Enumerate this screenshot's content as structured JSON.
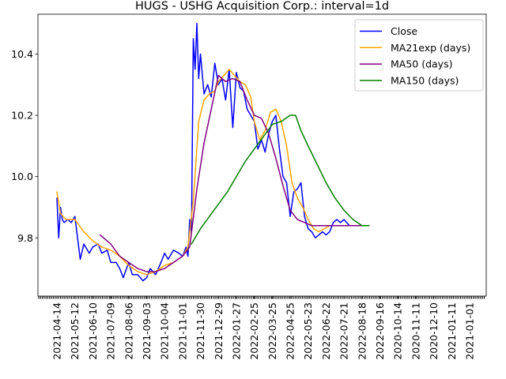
{
  "chart_data": {
    "type": "line",
    "title": "HUGS - USHG Acquisition Corp.: interval=1d",
    "xlabel": "",
    "ylabel": "",
    "ylim": [
      9.61,
      10.53
    ],
    "y_ticks": [
      9.8,
      10.0,
      10.2,
      10.4
    ],
    "y_tick_labels": [
      "9.8",
      "10.0",
      "10.2",
      "10.4"
    ],
    "x_tick_labels": [
      "2021-04-14",
      "2021-05-12",
      "2021-06-10",
      "2021-07-09",
      "2021-08-06",
      "2021-09-03",
      "2021-10-04",
      "2021-11-01",
      "2021-11-30",
      "2021-12-29",
      "2022-01-27",
      "2022-02-25",
      "2022-03-25",
      "2022-04-25",
      "2022-05-23",
      "2022-06-22",
      "2022-07-21",
      "2022-08-18",
      "2022-09-16",
      "2020-10-14",
      "2020-11-11",
      "2020-12-10",
      "2021-01-11",
      "2021-01-01"
    ],
    "x_index_range": [
      0,
      23
    ],
    "grid": false,
    "legend_position": "upper right",
    "series": [
      {
        "name": "Close",
        "color": "#0000ff",
        "x": [
          0,
          0.1,
          0.2,
          0.3,
          0.4,
          0.6,
          0.8,
          1.0,
          1.3,
          1.5,
          1.8,
          2.0,
          2.3,
          2.5,
          2.8,
          3.0,
          3.3,
          3.5,
          3.7,
          4.0,
          4.2,
          4.5,
          4.8,
          5.0,
          5.2,
          5.5,
          5.8,
          6.0,
          6.2,
          6.5,
          6.8,
          7.0,
          7.2,
          7.3,
          7.4,
          7.5,
          7.6,
          7.7,
          7.8,
          7.9,
          8.0,
          8.2,
          8.4,
          8.6,
          8.8,
          9.0,
          9.2,
          9.4,
          9.6,
          9.8,
          10.0,
          10.2,
          10.4,
          10.6,
          10.8,
          11.0,
          11.2,
          11.4,
          11.6,
          11.8,
          12.0,
          12.2,
          12.4,
          12.6,
          12.8,
          13.0,
          13.2,
          13.4,
          13.6,
          13.8,
          14.0,
          14.2,
          14.4,
          14.6,
          14.8,
          15.0,
          15.2,
          15.4,
          15.6,
          15.8,
          16.0,
          16.3,
          16.6,
          16.9,
          17.2,
          17.4
        ],
        "values": [
          9.93,
          9.8,
          9.9,
          9.86,
          9.85,
          9.86,
          9.85,
          9.87,
          9.73,
          9.78,
          9.75,
          9.77,
          9.78,
          9.75,
          9.76,
          9.72,
          9.72,
          9.7,
          9.67,
          9.72,
          9.68,
          9.68,
          9.66,
          9.67,
          9.7,
          9.68,
          9.72,
          9.75,
          9.73,
          9.76,
          9.75,
          9.74,
          9.77,
          9.74,
          9.86,
          9.82,
          10.45,
          10.35,
          10.5,
          10.32,
          10.4,
          10.27,
          10.3,
          10.26,
          10.37,
          10.3,
          10.32,
          10.25,
          10.35,
          10.16,
          10.34,
          10.29,
          10.28,
          10.22,
          10.2,
          10.18,
          10.09,
          10.12,
          10.08,
          10.14,
          10.18,
          10.2,
          10.09,
          10.0,
          9.98,
          9.87,
          9.95,
          9.96,
          9.98,
          9.87,
          9.83,
          9.82,
          9.8,
          9.81,
          9.82,
          9.81,
          9.82,
          9.85,
          9.86,
          9.85,
          9.86,
          9.84,
          9.84,
          9.84,
          9.84,
          9.84
        ]
      },
      {
        "name": "MA21exp (days)",
        "color": "#ffa500",
        "x": [
          0,
          0.2,
          0.5,
          1.0,
          1.5,
          2.0,
          2.5,
          3.0,
          3.5,
          4.0,
          4.5,
          5.0,
          5.5,
          6.0,
          6.5,
          7.0,
          7.3,
          7.6,
          7.9,
          8.2,
          8.5,
          8.8,
          9.0,
          9.3,
          9.6,
          9.9,
          10.2,
          10.5,
          10.8,
          11.0,
          11.3,
          11.6,
          11.9,
          12.2,
          12.5,
          12.8,
          13.1,
          13.4,
          13.7,
          14.0,
          14.3,
          14.6,
          14.9,
          15.2,
          15.5,
          15.8,
          16.1,
          16.5,
          17.0,
          17.4
        ],
        "values": [
          9.95,
          9.88,
          9.86,
          9.86,
          9.82,
          9.79,
          9.77,
          9.76,
          9.74,
          9.71,
          9.69,
          9.68,
          9.69,
          9.71,
          9.72,
          9.74,
          9.77,
          9.92,
          10.18,
          10.25,
          10.27,
          10.28,
          10.31,
          10.33,
          10.35,
          10.33,
          10.31,
          10.3,
          10.26,
          10.18,
          10.12,
          10.15,
          10.21,
          10.22,
          10.18,
          10.1,
          9.98,
          9.93,
          9.9,
          9.86,
          9.83,
          9.82,
          9.83,
          9.84,
          9.84,
          9.84,
          9.84,
          9.84,
          9.84,
          9.84
        ]
      },
      {
        "name": "MA50 (days)",
        "color": "#800080",
        "x": [
          2.4,
          3.0,
          3.5,
          4.0,
          4.5,
          5.0,
          5.5,
          6.0,
          6.5,
          7.0,
          7.4,
          7.8,
          8.2,
          8.6,
          9.0,
          9.4,
          9.8,
          10.2,
          10.6,
          11.0,
          11.4,
          11.8,
          12.2,
          12.6,
          13.0,
          13.4,
          13.8,
          14.2,
          14.6,
          15.0,
          15.4,
          15.8,
          16.2,
          16.6,
          17.0,
          17.4
        ],
        "values": [
          9.81,
          9.78,
          9.74,
          9.72,
          9.7,
          9.69,
          9.69,
          9.7,
          9.72,
          9.74,
          9.77,
          9.96,
          10.11,
          10.22,
          10.33,
          10.31,
          10.32,
          10.31,
          10.25,
          10.2,
          10.19,
          10.14,
          10.06,
          9.97,
          9.89,
          9.86,
          9.85,
          9.84,
          9.84,
          9.84,
          9.84,
          9.84,
          9.84,
          9.84,
          9.84,
          9.84
        ]
      },
      {
        "name": "MA150 (days)",
        "color": "#008000",
        "x": [
          7.5,
          8.0,
          8.5,
          9.0,
          9.5,
          10.0,
          10.5,
          11.0,
          11.5,
          12.0,
          12.5,
          13.0,
          13.3,
          13.6,
          14.0,
          14.5,
          15.0,
          15.5,
          16.0,
          16.5,
          17.0,
          17.4
        ],
        "values": [
          9.78,
          9.83,
          9.87,
          9.91,
          9.95,
          10.0,
          10.05,
          10.09,
          10.13,
          10.17,
          10.18,
          10.2,
          10.2,
          10.15,
          10.1,
          10.04,
          9.98,
          9.93,
          9.89,
          9.86,
          9.84,
          9.84
        ]
      }
    ]
  }
}
